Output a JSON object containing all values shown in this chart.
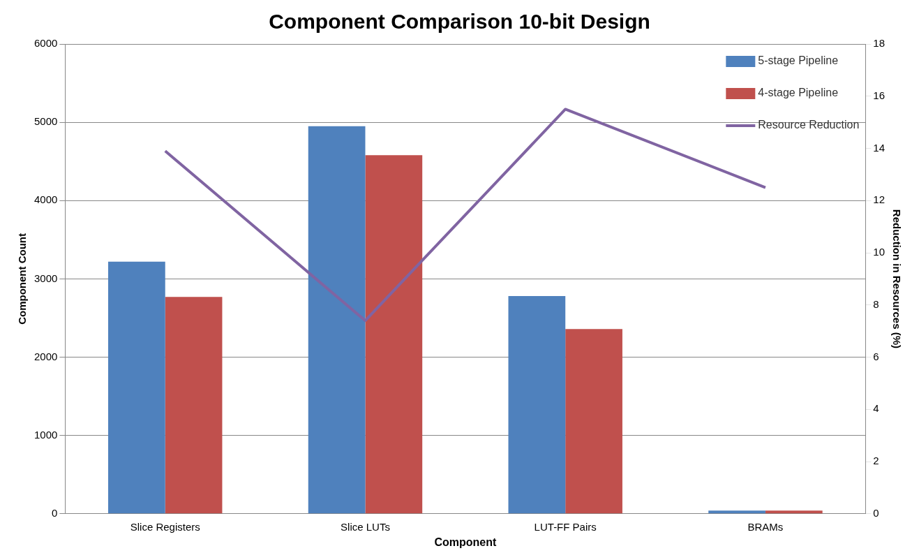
{
  "chart_data": {
    "type": "bar",
    "title": "Component Comparison 10-bit Design",
    "xlabel": "Component",
    "ylabel": "Component Count",
    "y2label": "Reduction in Resources (%)",
    "categories": [
      "Slice Registers",
      "Slice LUTs",
      "LUT-FF Pairs",
      "BRAMs"
    ],
    "series": [
      {
        "name": "5-stage Pipeline",
        "color": "#4f81bd",
        "values": [
          3220,
          4950,
          2780,
          40
        ]
      },
      {
        "name": "4-stage Pipeline",
        "color": "#c0504d",
        "values": [
          2770,
          4580,
          2360,
          40
        ]
      },
      {
        "name": "Resource Reduction",
        "color": "#8064a2",
        "type": "line",
        "axis": "y2",
        "values": [
          13.9,
          7.4,
          15.5,
          12.5
        ]
      }
    ],
    "ylim": [
      0,
      6000
    ],
    "yticks": [
      0,
      1000,
      2000,
      3000,
      4000,
      5000,
      6000
    ],
    "y2lim": [
      0,
      18
    ],
    "y2ticks": [
      0,
      2,
      4,
      6,
      8,
      10,
      12,
      14,
      16,
      18
    ],
    "grid": "y",
    "legend": "top right",
    "marker": "none",
    "line_style": "solid"
  }
}
